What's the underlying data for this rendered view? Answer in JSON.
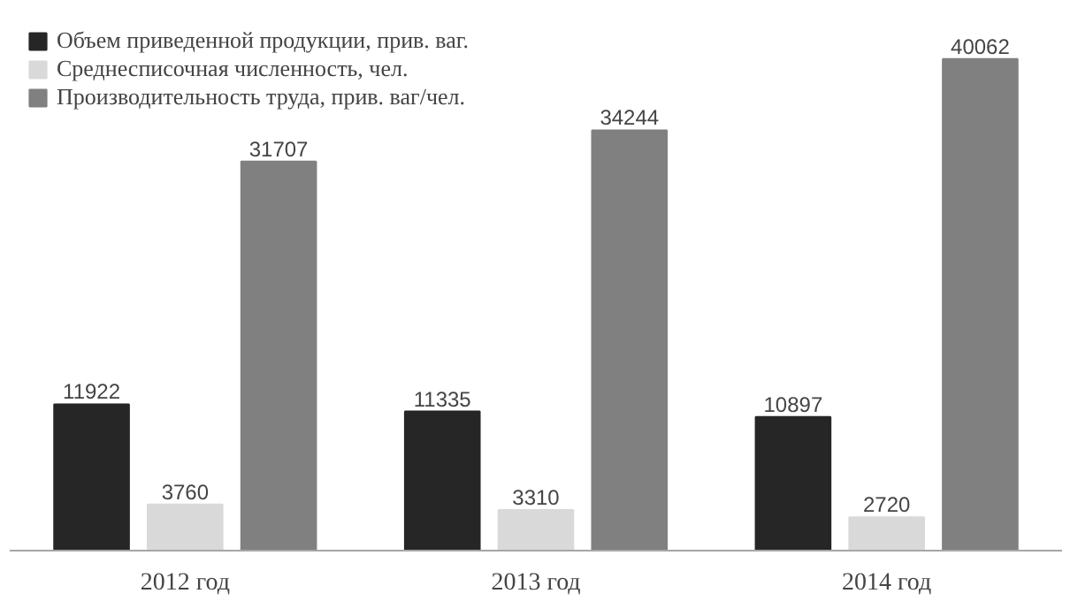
{
  "chart_data": {
    "type": "bar",
    "categories": [
      "2012 год",
      "2013 год",
      "2014 год"
    ],
    "series": [
      {
        "name": "Объем приведенной продукции, прив. ваг.",
        "color": "#262626",
        "values": [
          11922,
          11335,
          10897
        ]
      },
      {
        "name": "Среднесписочная численность, чел.",
        "color": "#d9d9d9",
        "values": [
          3760,
          3310,
          2720
        ]
      },
      {
        "name": "Производительность труда, прив. ваг/чел.",
        "color": "#808080",
        "values": [
          31707,
          34244,
          40062
        ]
      }
    ],
    "data_labels": true,
    "grid": false,
    "legend": "top left"
  }
}
